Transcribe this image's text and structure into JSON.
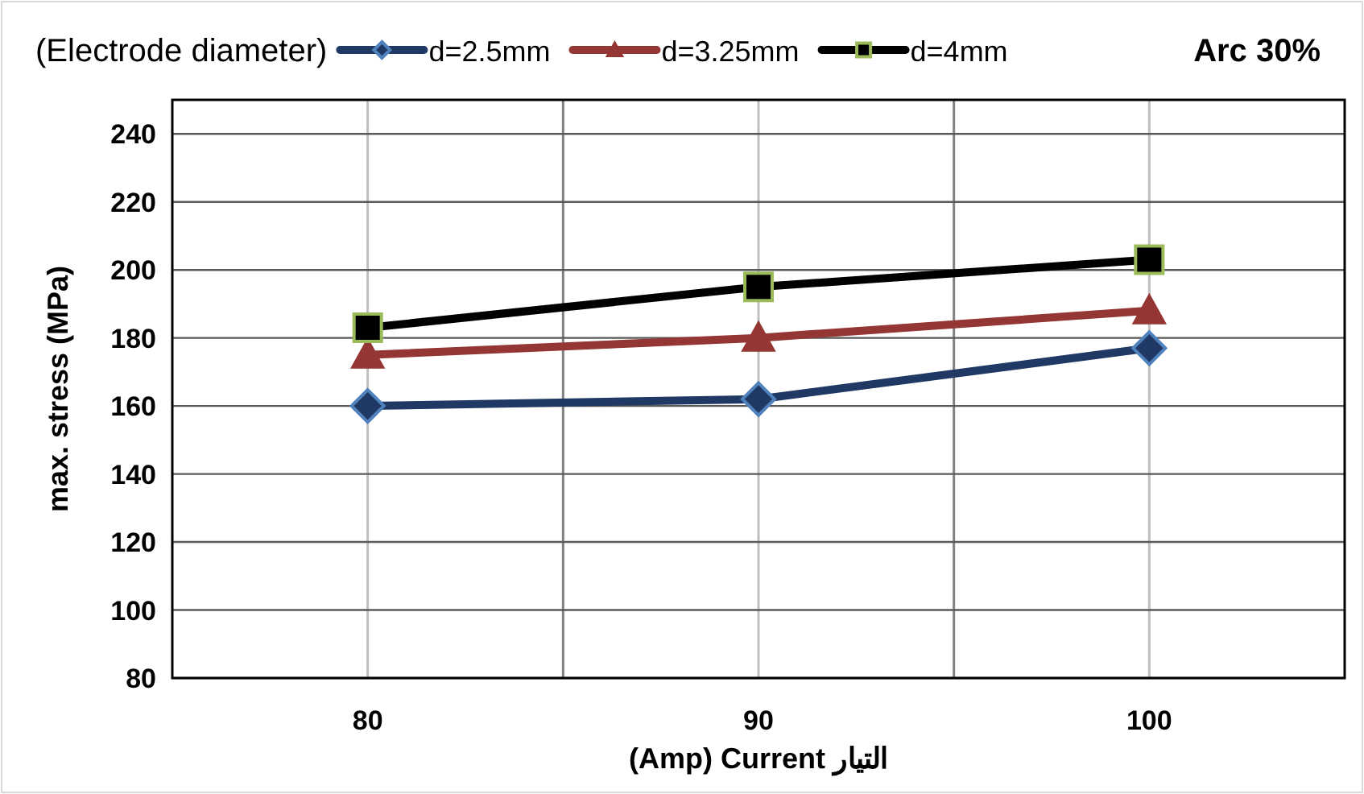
{
  "chart_data": {
    "type": "line",
    "title": "Arc 30%",
    "legend_title": "(Electrode diameter)",
    "xlabel": "(Amp) Current  التيار",
    "ylabel": "max. stress (MPa)",
    "x": [
      80,
      90,
      100
    ],
    "series": [
      {
        "name": "d=2.5mm",
        "color": "#1f3864",
        "marker": "diamond",
        "values": [
          160,
          162,
          177
        ]
      },
      {
        "name": "d=3.25mm",
        "color": "#943634",
        "marker": "triangle",
        "values": [
          175,
          180,
          188
        ]
      },
      {
        "name": "d=4mm",
        "color": "#000000",
        "marker": "square",
        "values": [
          183,
          195,
          203
        ]
      }
    ],
    "xlim": [
      75,
      105
    ],
    "xticks": [
      80,
      {
        "value": 85,
        "label": null
      },
      90,
      {
        "value": 95,
        "label": null
      },
      100
    ],
    "ylim": [
      80,
      250
    ],
    "yticks": [
      80,
      100,
      120,
      140,
      160,
      180,
      200,
      220,
      240
    ],
    "grid": true,
    "legend": "top",
    "line_style": "solid"
  }
}
